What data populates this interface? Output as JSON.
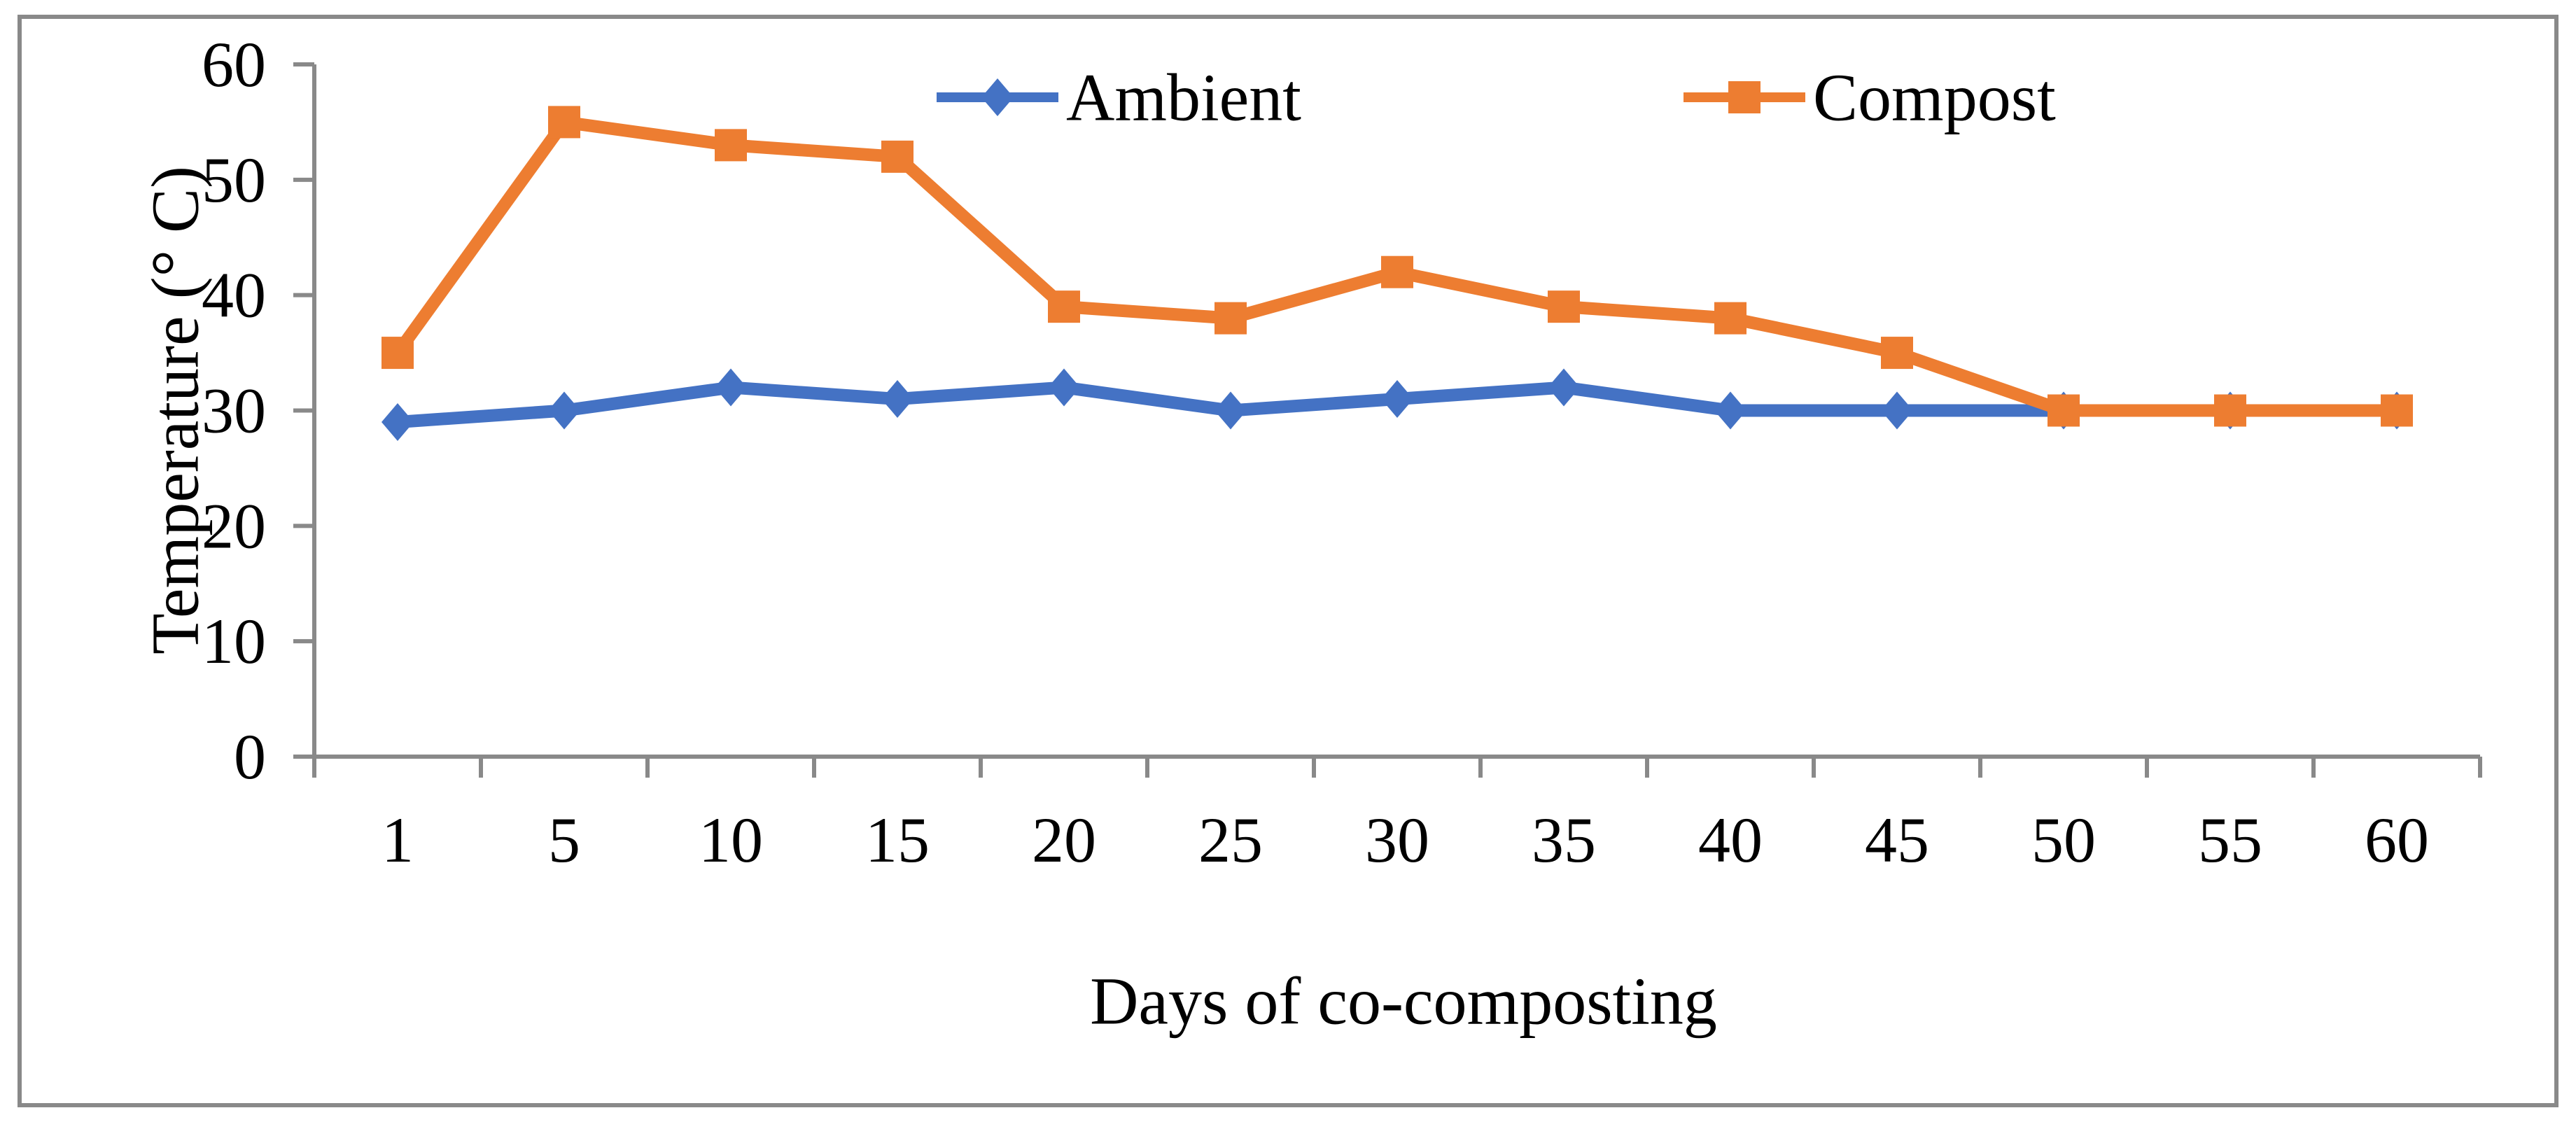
{
  "figure": {
    "background": "#ffffff",
    "border_color": "#898989",
    "axis_color": "#898989",
    "text_color": "#000000"
  },
  "chart_data": {
    "type": "line",
    "title": "",
    "xlabel": "Days of co-composting",
    "ylabel": "Temperature (° C)",
    "x_categories": [
      "1",
      "5",
      "10",
      "15",
      "20",
      "25",
      "30",
      "35",
      "40",
      "45",
      "50",
      "55",
      "60"
    ],
    "ylim": [
      0,
      60
    ],
    "yticks": [
      0,
      10,
      20,
      30,
      40,
      50,
      60
    ],
    "grid": false,
    "legend_position": "top-center",
    "series": [
      {
        "name": "Ambient",
        "color": "#4472C4",
        "marker": "diamond",
        "values": [
          29,
          30,
          32,
          31,
          32,
          30,
          31,
          32,
          30,
          30,
          30,
          30,
          30
        ]
      },
      {
        "name": "Compost",
        "color": "#ED7D31",
        "marker": "square",
        "values": [
          35,
          55,
          53,
          52,
          39,
          38,
          42,
          39,
          38,
          35,
          30,
          30,
          30
        ]
      }
    ]
  }
}
